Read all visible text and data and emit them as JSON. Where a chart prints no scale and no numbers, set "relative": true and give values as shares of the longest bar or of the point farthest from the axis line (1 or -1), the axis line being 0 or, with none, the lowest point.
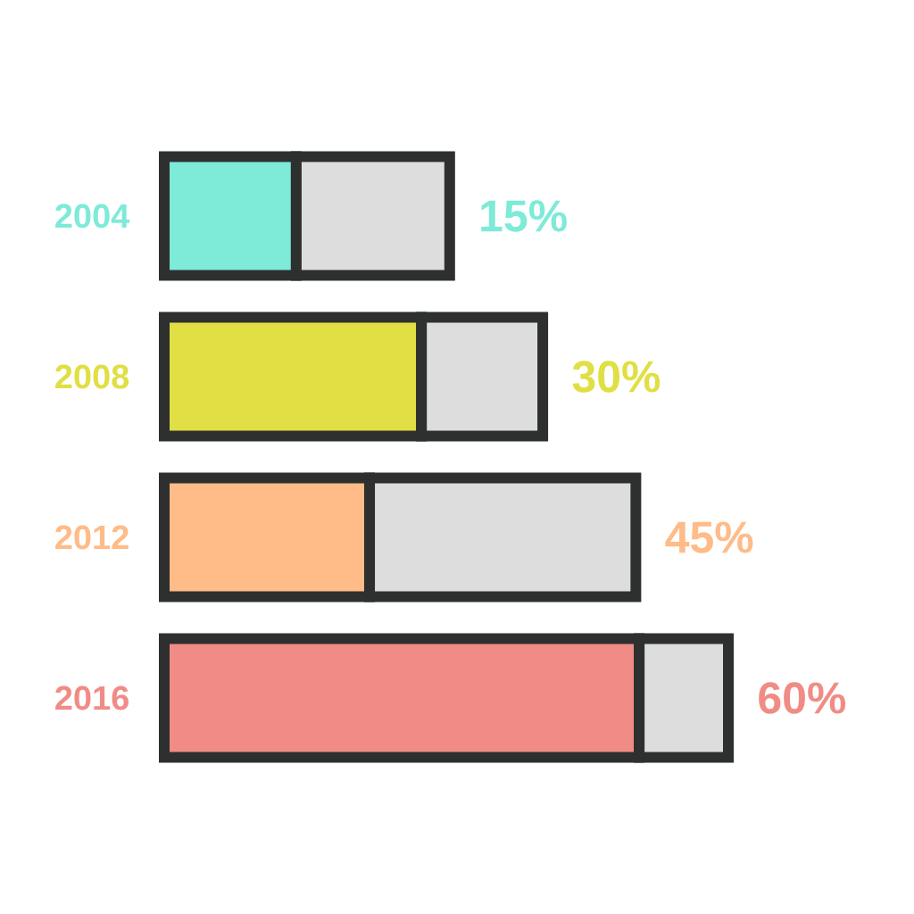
{
  "chart_data": {
    "type": "bar",
    "orientation": "horizontal",
    "stacked": true,
    "relative": true,
    "categories": [
      "2004",
      "2008",
      "2012",
      "2016"
    ],
    "series": [
      {
        "colors": [
          "#7eead8",
          "#e0df43",
          "#ffbb88",
          "#f08c85"
        ],
        "values": [
          0.234,
          0.456,
          0.364,
          0.842
        ]
      },
      {
        "color": "#dddddd",
        "values": [
          0.272,
          0.215,
          0.472,
          0.158
        ]
      }
    ],
    "annotations": [
      "15%",
      "30%",
      "45%",
      "60%"
    ]
  }
}
